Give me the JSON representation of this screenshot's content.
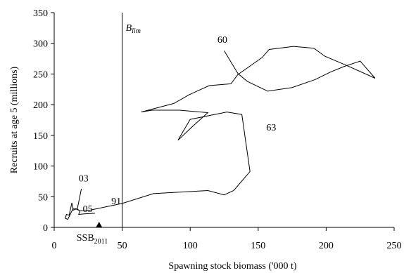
{
  "chart_data": {
    "type": "line",
    "title": "",
    "xlabel": "Spawning stock biomass ('000 t)",
    "ylabel": "Recruits at age 5 (millions)",
    "xlim": [
      0,
      250
    ],
    "ylim": [
      0,
      350
    ],
    "xticks": [
      0,
      50,
      100,
      150,
      200,
      250
    ],
    "yticks": [
      0,
      50,
      100,
      150,
      200,
      250,
      300,
      350
    ],
    "grid": false,
    "series": [
      {
        "x": [
          135,
          142,
          157,
          175,
          192,
          203,
          213,
          225,
          236,
          214,
          199,
          191,
          176,
          158,
          153,
          144,
          135,
          130,
          114,
          99,
          88,
          64,
          72,
          92,
          113,
          101,
          91,
          100,
          127,
          138,
          144,
          132,
          125,
          113,
          73,
          50,
          24,
          19,
          16,
          14,
          13,
          11,
          9,
          8,
          10,
          14,
          17,
          19,
          18,
          22,
          30
        ],
        "y": [
          251,
          238,
          222,
          228,
          241,
          253,
          262,
          271,
          243,
          265,
          279,
          292,
          295,
          290,
          277,
          263,
          249,
          234,
          231,
          216,
          202,
          188,
          191,
          191,
          187,
          163,
          142,
          176,
          188,
          184,
          91,
          60,
          53,
          60,
          55,
          39,
          27,
          27,
          30,
          28,
          40,
          20,
          21,
          15,
          13,
          31,
          30,
          27,
          21,
          22,
          23
        ]
      }
    ],
    "reference_line": {
      "x": 50,
      "label_main": "B",
      "label_sub": "lim"
    },
    "annotations": [
      "60",
      "63",
      "91",
      "03",
      "05"
    ],
    "ssb_marker": {
      "x": 33,
      "label_main": "SSB",
      "label_sub": "2011"
    }
  }
}
